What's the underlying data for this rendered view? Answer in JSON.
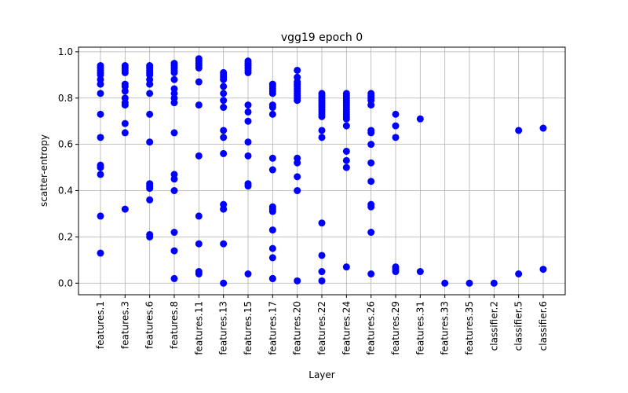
{
  "chart_data": {
    "type": "scatter",
    "title": "vgg19 epoch 0",
    "xlabel": "Layer",
    "ylabel": "scatter-entropy",
    "ylim": [
      -0.05,
      1.02
    ],
    "yticks": [
      0.0,
      0.2,
      0.4,
      0.6,
      0.8,
      1.0
    ],
    "ytick_labels": [
      "0.0",
      "0.2",
      "0.4",
      "0.6",
      "0.8",
      "1.0"
    ],
    "grid": true,
    "marker_color": "#0000ff",
    "categories": [
      "features.1",
      "features.3",
      "features.6",
      "features.8",
      "features.11",
      "features.13",
      "features.15",
      "features.17",
      "features.20",
      "features.22",
      "features.24",
      "features.26",
      "features.29",
      "features.31",
      "features.33",
      "features.35",
      "classifier.2",
      "classifier.5",
      "classifier.6"
    ],
    "points": [
      [
        0.94,
        0.93,
        0.92,
        0.91,
        0.9,
        0.88,
        0.86,
        0.82,
        0.73,
        0.63,
        0.51,
        0.5,
        0.47,
        0.29,
        0.13
      ],
      [
        0.94,
        0.93,
        0.92,
        0.91,
        0.86,
        0.85,
        0.83,
        0.8,
        0.78,
        0.77,
        0.69,
        0.65,
        0.32
      ],
      [
        0.94,
        0.93,
        0.92,
        0.91,
        0.9,
        0.88,
        0.86,
        0.82,
        0.73,
        0.61,
        0.43,
        0.42,
        0.41,
        0.36,
        0.21,
        0.2
      ],
      [
        0.95,
        0.94,
        0.93,
        0.92,
        0.91,
        0.88,
        0.84,
        0.82,
        0.8,
        0.78,
        0.65,
        0.47,
        0.45,
        0.4,
        0.22,
        0.14,
        0.02
      ],
      [
        0.97,
        0.96,
        0.95,
        0.94,
        0.93,
        0.87,
        0.77,
        0.55,
        0.29,
        0.17,
        0.05,
        0.04
      ],
      [
        0.91,
        0.9,
        0.89,
        0.88,
        0.85,
        0.82,
        0.79,
        0.76,
        0.66,
        0.63,
        0.56,
        0.34,
        0.32,
        0.17,
        0.0
      ],
      [
        0.96,
        0.95,
        0.94,
        0.93,
        0.92,
        0.91,
        0.77,
        0.74,
        0.7,
        0.61,
        0.55,
        0.43,
        0.42,
        0.04
      ],
      [
        0.86,
        0.85,
        0.84,
        0.83,
        0.82,
        0.77,
        0.76,
        0.73,
        0.54,
        0.49,
        0.33,
        0.32,
        0.31,
        0.23,
        0.15,
        0.11,
        0.02,
        0.02
      ],
      [
        0.92,
        0.89,
        0.87,
        0.86,
        0.85,
        0.84,
        0.83,
        0.82,
        0.81,
        0.8,
        0.79,
        0.54,
        0.52,
        0.46,
        0.4,
        0.01
      ],
      [
        0.82,
        0.81,
        0.8,
        0.79,
        0.78,
        0.77,
        0.76,
        0.75,
        0.74,
        0.73,
        0.72,
        0.66,
        0.63,
        0.26,
        0.12,
        0.05,
        0.01
      ],
      [
        0.82,
        0.81,
        0.8,
        0.79,
        0.78,
        0.77,
        0.76,
        0.75,
        0.74,
        0.73,
        0.72,
        0.71,
        0.68,
        0.57,
        0.53,
        0.5,
        0.07
      ],
      [
        0.82,
        0.81,
        0.8,
        0.79,
        0.77,
        0.66,
        0.65,
        0.6,
        0.52,
        0.44,
        0.34,
        0.33,
        0.22,
        0.04
      ],
      [
        0.73,
        0.68,
        0.63,
        0.07,
        0.06,
        0.05
      ],
      [
        0.71,
        0.05
      ],
      [
        0.0
      ],
      [
        0.0
      ],
      [
        0.0
      ],
      [
        0.66,
        0.04
      ],
      [
        0.67,
        0.06
      ]
    ]
  }
}
